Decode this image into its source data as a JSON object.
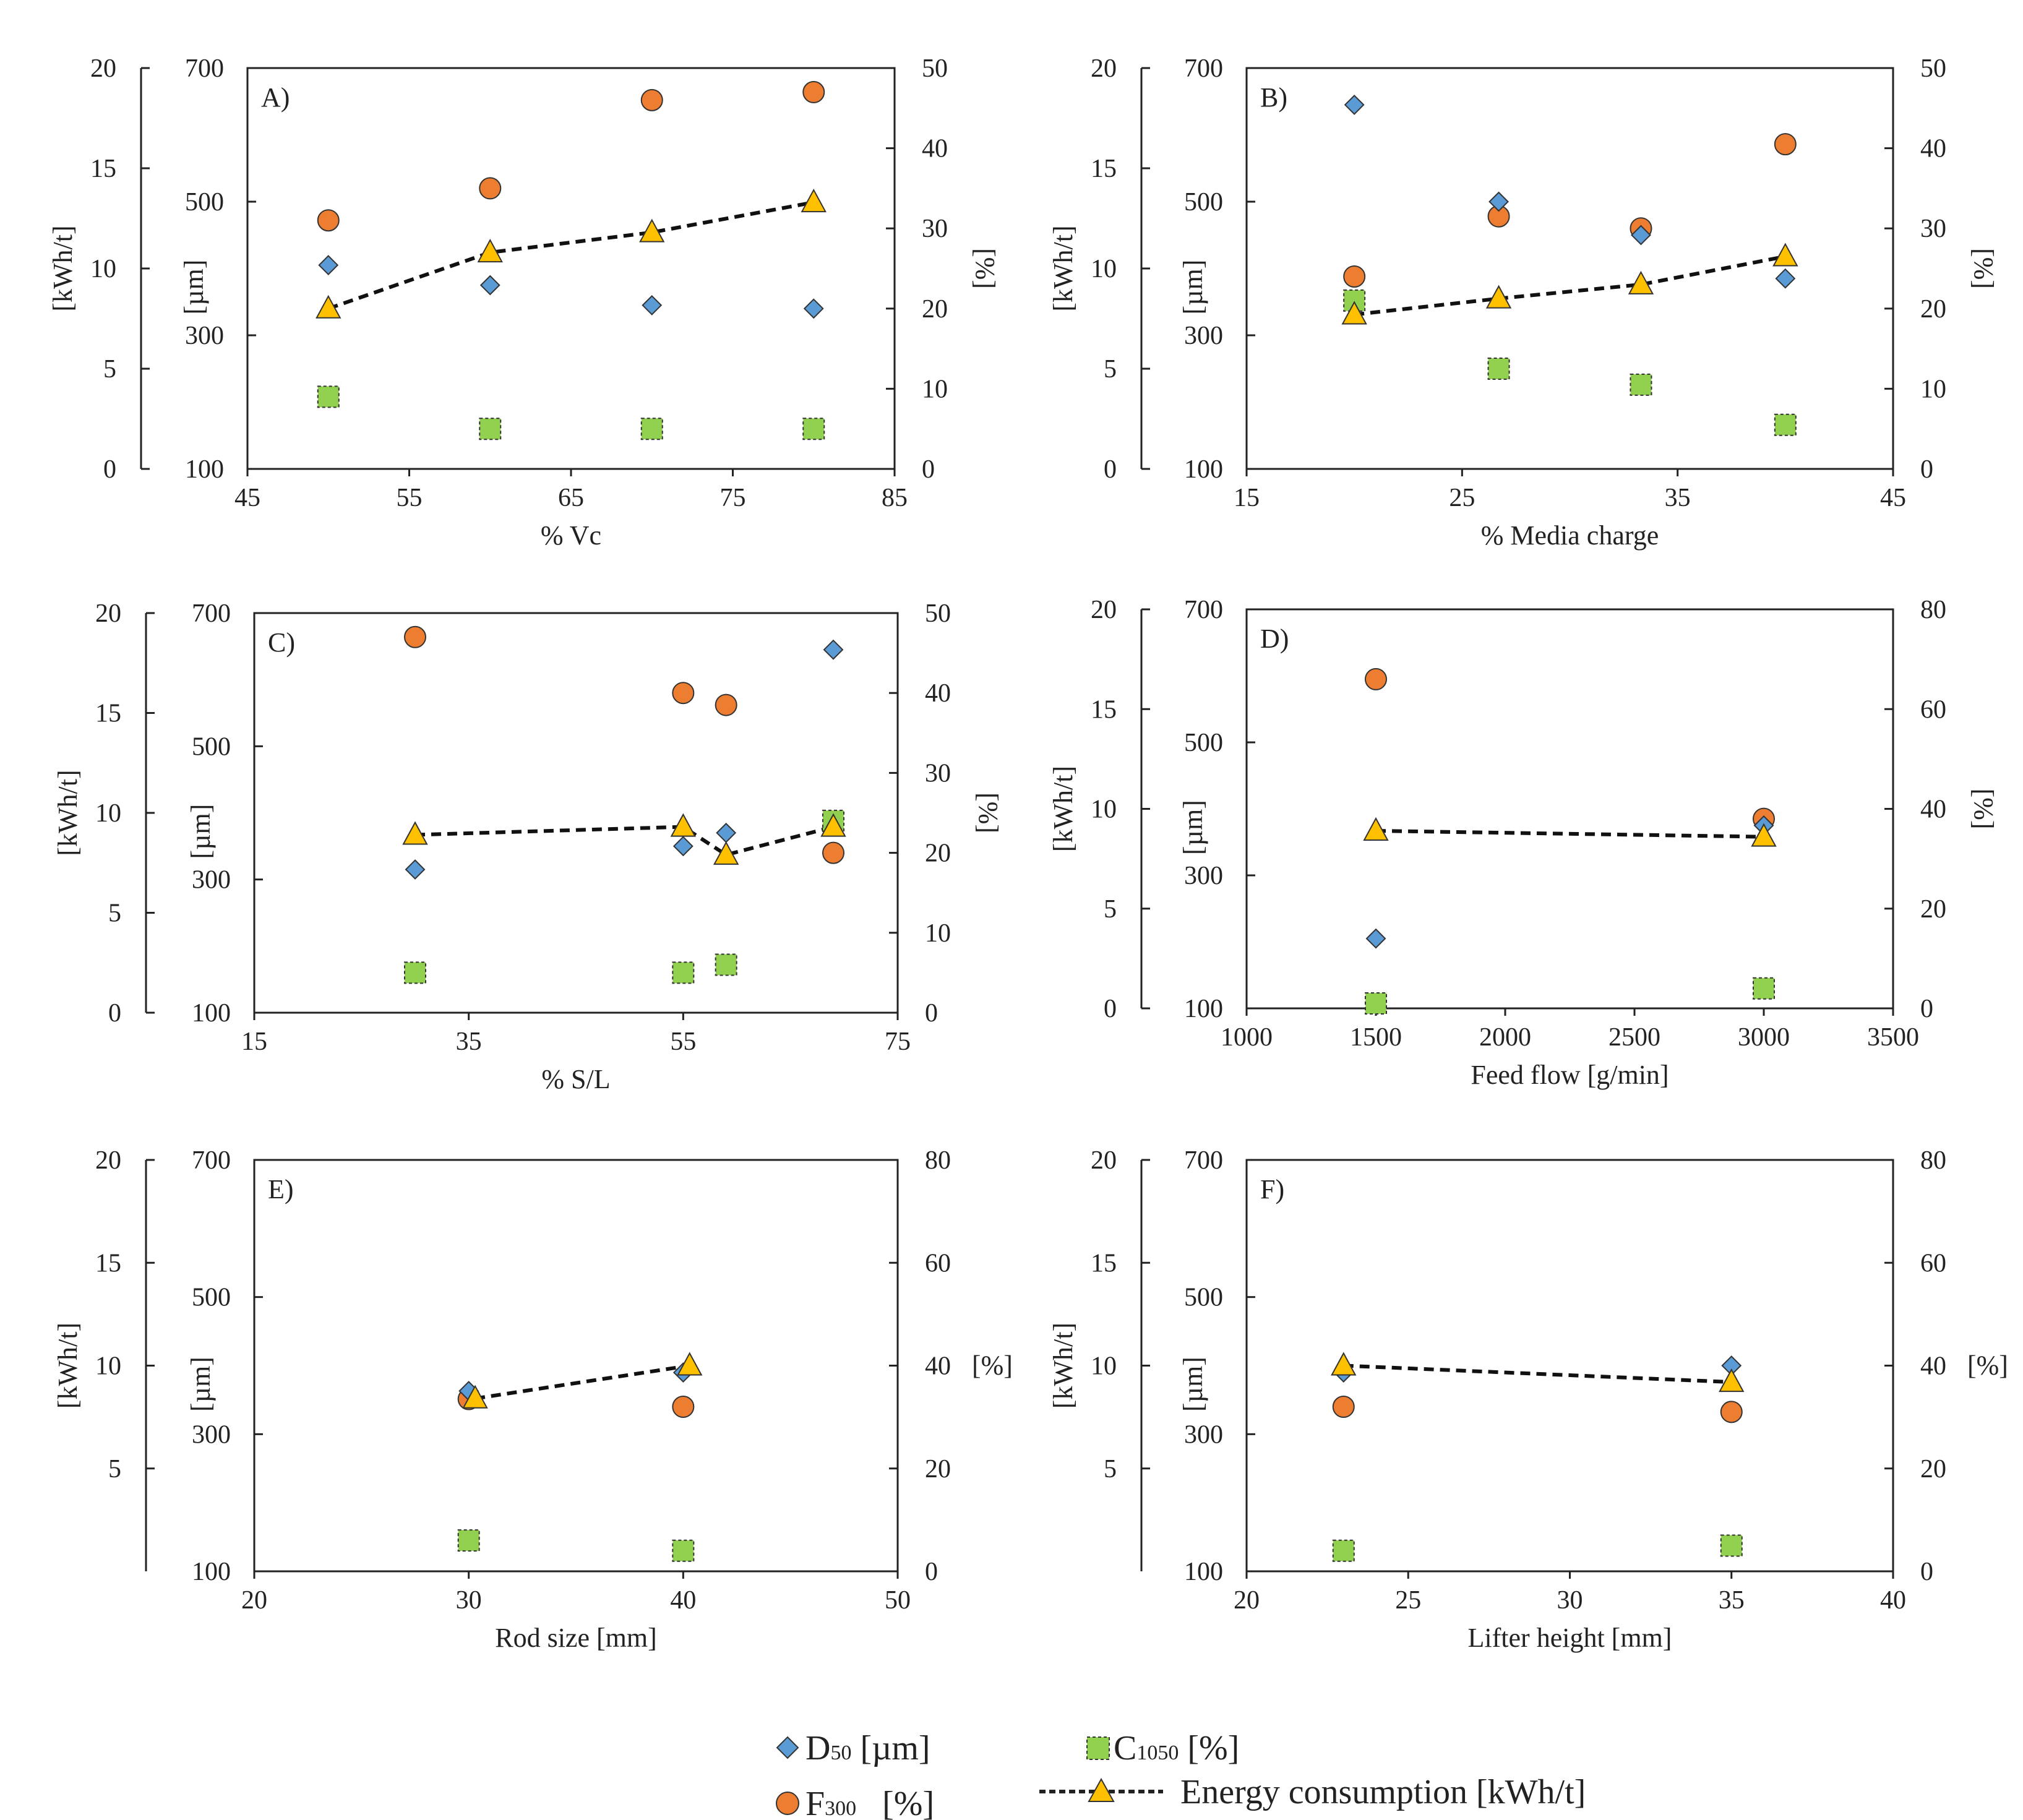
{
  "colors": {
    "d50": "#5B9BD5",
    "f300": "#ED7D31",
    "c1050": "#92D050",
    "energy": "#FFC000",
    "axis": "#222222"
  },
  "chart_data": [
    {
      "type": "scatter",
      "panel": "A)",
      "xlabel": "% Vc",
      "xlim": [
        45,
        85
      ],
      "xticks": [
        45,
        55,
        65,
        75,
        85
      ],
      "y_energy": {
        "label": "[kWh/t]",
        "lim": [
          0,
          20
        ],
        "ticks": [
          0,
          5,
          10,
          15,
          20
        ]
      },
      "y_size": {
        "label": "[µm]",
        "lim": [
          100,
          700
        ],
        "ticks": [
          100,
          300,
          500,
          700
        ]
      },
      "y_percent": {
        "label": "[%]",
        "lim": [
          0,
          50
        ],
        "ticks": [
          0,
          10,
          20,
          30,
          40,
          50
        ]
      },
      "series": {
        "d50": [
          [
            50,
            405
          ],
          [
            60,
            375
          ],
          [
            70,
            345
          ],
          [
            80,
            340
          ]
        ],
        "f300": [
          [
            50,
            31
          ],
          [
            60,
            35
          ],
          [
            70,
            46
          ],
          [
            80,
            47
          ]
        ],
        "c1050": [
          [
            50,
            9
          ],
          [
            60,
            5
          ],
          [
            70,
            5
          ],
          [
            80,
            5
          ]
        ],
        "energy": [
          [
            50,
            8
          ],
          [
            60,
            10.8
          ],
          [
            70,
            11.8
          ],
          [
            80,
            13.3
          ]
        ]
      }
    },
    {
      "type": "scatter",
      "panel": "B)",
      "xlabel": "% Media charge",
      "xlim": [
        15,
        45
      ],
      "xticks": [
        15,
        25,
        35,
        45
      ],
      "y_energy": {
        "label": "[kWh/t]",
        "lim": [
          0,
          20
        ],
        "ticks": [
          0,
          5,
          10,
          15,
          20
        ]
      },
      "y_size": {
        "label": "[µm]",
        "lim": [
          100,
          700
        ],
        "ticks": [
          100,
          300,
          500,
          700
        ]
      },
      "y_percent": {
        "label": "[%]",
        "lim": [
          0,
          50
        ],
        "ticks": [
          0,
          10,
          20,
          30,
          40,
          50
        ]
      },
      "series": {
        "d50": [
          [
            20,
            645
          ],
          [
            26.7,
            500
          ],
          [
            33.3,
            450
          ],
          [
            40,
            385
          ]
        ],
        "f300": [
          [
            20,
            24
          ],
          [
            26.7,
            31.5
          ],
          [
            33.3,
            30
          ],
          [
            40,
            40.5
          ]
        ],
        "c1050": [
          [
            20,
            21
          ],
          [
            26.7,
            12.5
          ],
          [
            33.3,
            10.5
          ],
          [
            40,
            5.5
          ]
        ],
        "energy": [
          [
            20,
            7.7
          ],
          [
            26.7,
            8.5
          ],
          [
            33.3,
            9.2
          ],
          [
            40,
            10.6
          ]
        ]
      }
    },
    {
      "type": "scatter",
      "panel": "C)",
      "xlabel": "% S/L",
      "xlim": [
        15,
        75
      ],
      "xticks": [
        15,
        35,
        55,
        75
      ],
      "y_energy": {
        "label": "[kWh/t]",
        "lim": [
          0,
          20
        ],
        "ticks": [
          0,
          5,
          10,
          15,
          20
        ]
      },
      "y_size": {
        "label": "[µm]",
        "lim": [
          100,
          700
        ],
        "ticks": [
          100,
          300,
          500,
          700
        ]
      },
      "y_percent": {
        "label": "[%]",
        "lim": [
          0,
          50
        ],
        "ticks": [
          0,
          10,
          20,
          30,
          40,
          50
        ]
      },
      "series": {
        "d50": [
          [
            30,
            315
          ],
          [
            55,
            350
          ],
          [
            59,
            370
          ],
          [
            69,
            645
          ]
        ],
        "f300": [
          [
            30,
            47
          ],
          [
            55,
            40
          ],
          [
            59,
            38.5
          ],
          [
            69,
            20
          ]
        ],
        "c1050": [
          [
            30,
            5
          ],
          [
            55,
            5
          ],
          [
            59,
            6
          ],
          [
            69,
            24
          ]
        ],
        "energy": [
          [
            30,
            8.9
          ],
          [
            55,
            9.3
          ],
          [
            59,
            7.9
          ],
          [
            69,
            9.3
          ]
        ]
      }
    },
    {
      "type": "scatter",
      "panel": "D)",
      "xlabel": "Feed flow [g/min]",
      "xlim": [
        1000,
        3500
      ],
      "xticks": [
        1000,
        1500,
        2000,
        2500,
        3000,
        3500
      ],
      "y_energy": {
        "label": "[kWh/t]",
        "lim": [
          0,
          20
        ],
        "ticks": [
          0,
          5,
          10,
          15,
          20
        ]
      },
      "y_size": {
        "label": "[µm]",
        "lim": [
          100,
          700
        ],
        "ticks": [
          100,
          300,
          500,
          700
        ]
      },
      "y_percent": {
        "label": "[%]",
        "lim": [
          0,
          80
        ],
        "ticks": [
          0,
          20,
          40,
          60,
          80
        ]
      },
      "series": {
        "d50": [
          [
            1500,
            205
          ],
          [
            3000,
            375
          ]
        ],
        "f300": [
          [
            1500,
            66
          ],
          [
            3000,
            38
          ]
        ],
        "c1050": [
          [
            1500,
            1
          ],
          [
            3000,
            4
          ]
        ],
        "energy": [
          [
            1500,
            8.9
          ],
          [
            3000,
            8.6
          ]
        ]
      }
    },
    {
      "type": "scatter",
      "panel": "E)",
      "xlabel": "Rod size [mm]",
      "xlim": [
        20,
        50
      ],
      "xticks": [
        20,
        30,
        40,
        50
      ],
      "y_energy": {
        "label": "[kWh/t]",
        "lim": [
          0,
          20
        ],
        "ticks": [
          5,
          10,
          15,
          20
        ]
      },
      "y_size": {
        "label": "[µm]",
        "lim": [
          100,
          700
        ],
        "ticks": [
          100,
          300,
          500,
          700
        ]
      },
      "y_percent": {
        "label": "[%]",
        "lim": [
          0,
          80
        ],
        "ticks": [
          0,
          20,
          40,
          60,
          80
        ]
      },
      "series": {
        "d50": [
          [
            30,
            363
          ],
          [
            40,
            390
          ]
        ],
        "f300": [
          [
            30,
            33.5
          ],
          [
            40,
            32
          ]
        ],
        "c1050": [
          [
            30,
            6
          ],
          [
            40,
            4
          ]
        ],
        "energy": [
          [
            30.3,
            8.4
          ],
          [
            40.3,
            10
          ]
        ]
      }
    },
    {
      "type": "scatter",
      "panel": "F)",
      "xlabel": "Lifter height [mm]",
      "xlim": [
        20,
        40
      ],
      "xticks": [
        20,
        25,
        30,
        35,
        40
      ],
      "y_energy": {
        "label": "[kWh/t]",
        "lim": [
          0,
          20
        ],
        "ticks": [
          5,
          10,
          15,
          20
        ]
      },
      "y_size": {
        "label": "[µm]",
        "lim": [
          100,
          700
        ],
        "ticks": [
          100,
          300,
          500,
          700
        ]
      },
      "y_percent": {
        "label": "[%]",
        "lim": [
          0,
          80
        ],
        "ticks": [
          0,
          20,
          40,
          60,
          80
        ]
      },
      "series": {
        "d50": [
          [
            23,
            390
          ],
          [
            35,
            400
          ]
        ],
        "f300": [
          [
            23,
            32
          ],
          [
            35,
            31
          ]
        ],
        "c1050": [
          [
            23,
            4
          ],
          [
            35,
            5
          ]
        ],
        "energy": [
          [
            23,
            10
          ],
          [
            35,
            9.2
          ]
        ]
      }
    }
  ],
  "legend": {
    "d50_main": "D",
    "d50_sub": "50",
    "d50_unit": " [µm]",
    "f300_main": "F",
    "f300_sub": "300",
    "f300_unit": "   [%]",
    "c1050_main": "C",
    "c1050_sub": "1050",
    "c1050_unit": " [%]",
    "energy_label": "Energy consumption [kWh/t]"
  }
}
